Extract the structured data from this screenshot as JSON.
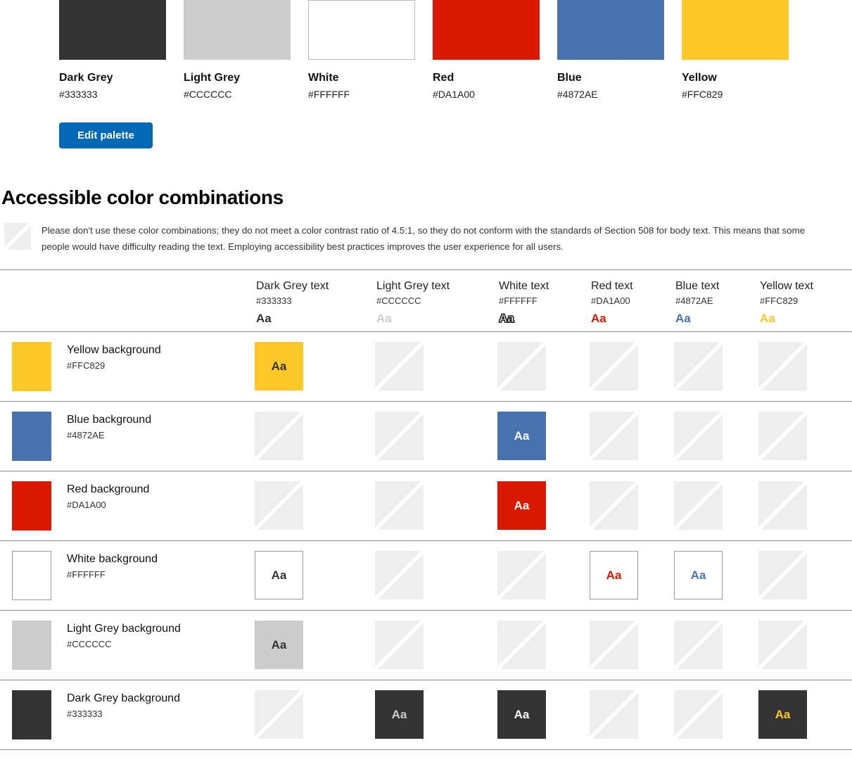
{
  "palette": {
    "edit_button_label": "Edit palette",
    "edit_button_color": "#0068B5",
    "swatches": [
      {
        "name": "Dark Grey",
        "hex": "#333333"
      },
      {
        "name": "Light Grey",
        "hex": "#CCCCCC"
      },
      {
        "name": "White",
        "hex": "#FFFFFF"
      },
      {
        "name": "Red",
        "hex": "#DA1A00"
      },
      {
        "name": "Blue",
        "hex": "#4872AE"
      },
      {
        "name": "Yellow",
        "hex": "#FFC829"
      }
    ]
  },
  "section": {
    "title": "Accessible color combinations",
    "note": "Please don't use these color combinations; they do not meet a color contrast ratio of 4.5:1, so they do not conform with the standards of Section 508 for body text. This means that some people would have difficulty reading the text. Employing accessibility best practices improves the user experience for all users."
  },
  "matrix": {
    "sample_text": "Aa",
    "placeholder_color": "#EEEEEE",
    "divider_color": "#8E8E8E",
    "columns": [
      {
        "label": "Dark Grey text",
        "hex": "#333333"
      },
      {
        "label": "Light Grey text",
        "hex": "#CCCCCC"
      },
      {
        "label": "White text",
        "hex": "#FFFFFF"
      },
      {
        "label": "Red text",
        "hex": "#DA1A00"
      },
      {
        "label": "Blue text",
        "hex": "#4872AE"
      },
      {
        "label": "Yellow text",
        "hex": "#FFC829"
      }
    ],
    "rows": [
      {
        "label": "Yellow background",
        "hex": "#FFC829",
        "accessible": [
          true,
          false,
          false,
          false,
          false,
          false
        ]
      },
      {
        "label": "Blue background",
        "hex": "#4872AE",
        "accessible": [
          false,
          false,
          true,
          false,
          false,
          false
        ]
      },
      {
        "label": "Red background",
        "hex": "#DA1A00",
        "accessible": [
          false,
          false,
          true,
          false,
          false,
          false
        ]
      },
      {
        "label": "White background",
        "hex": "#FFFFFF",
        "accessible": [
          true,
          false,
          false,
          true,
          true,
          false
        ]
      },
      {
        "label": "Light Grey background",
        "hex": "#CCCCCC",
        "accessible": [
          true,
          false,
          false,
          false,
          false,
          false
        ]
      },
      {
        "label": "Dark Grey background",
        "hex": "#333333",
        "accessible": [
          false,
          true,
          true,
          false,
          false,
          true
        ]
      }
    ]
  }
}
